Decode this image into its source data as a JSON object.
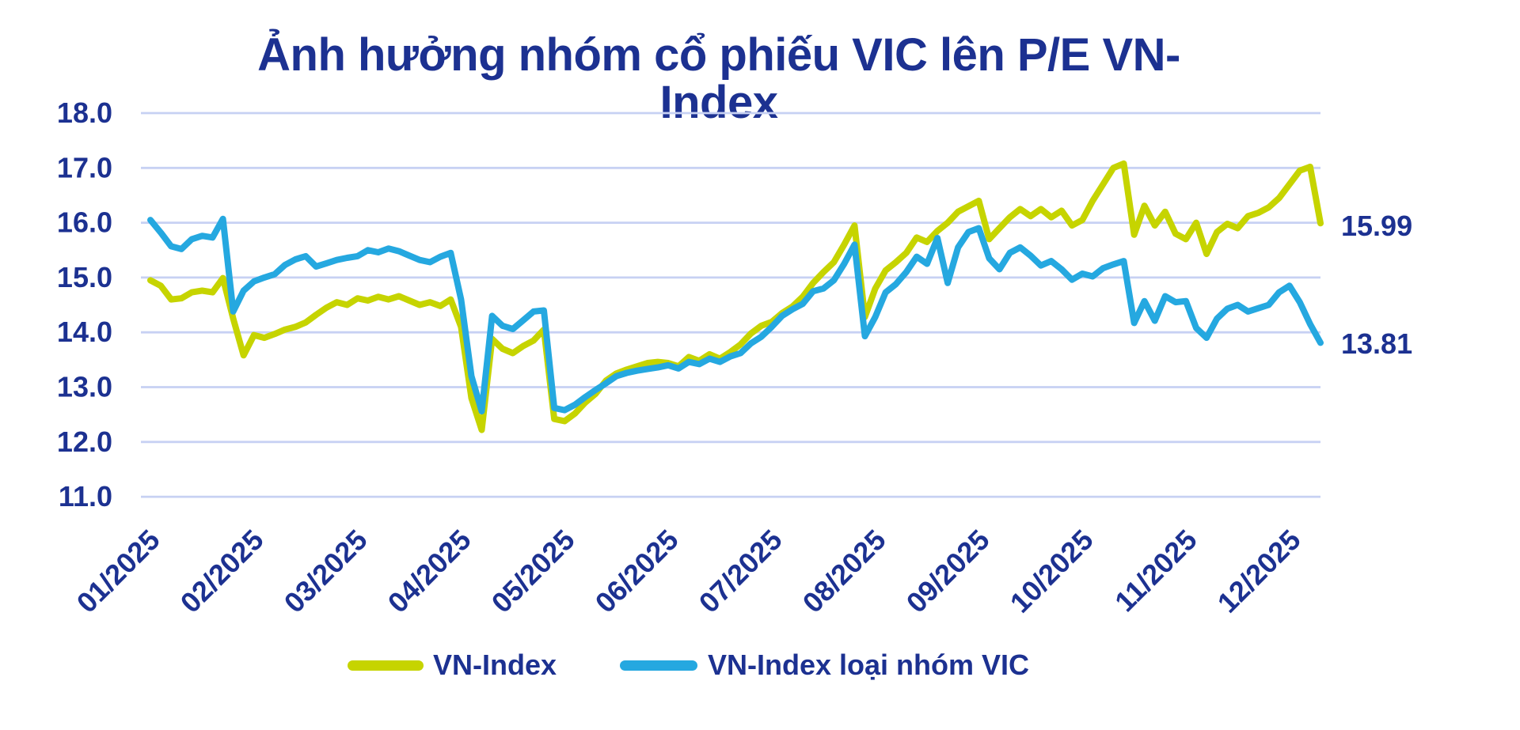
{
  "title": "Ảnh hưởng nhóm cổ phiếu VIC lên P/E VN-Index",
  "colors": {
    "title_text": "#1c3191",
    "axis_text": "#1c3191",
    "legend_text": "#1c3191",
    "end_label_text": "#1c3191",
    "gridline": "#c7d1f3",
    "vn_index_line": "#c6d400",
    "vn_index_ex_vic_line": "#25a8e0",
    "background": "#ffffff"
  },
  "chart_data": {
    "type": "line",
    "title": "Ảnh hưởng nhóm cổ phiếu VIC lên P/E VN-Index",
    "xlabel": "",
    "ylabel": "",
    "ylim": [
      11.0,
      18.0
    ],
    "grid": "horizontal-only",
    "legend_position": "bottom",
    "x_tick_labels": [
      "01/2025",
      "02/2025",
      "03/2025",
      "04/2025",
      "05/2025",
      "06/2025",
      "07/2025",
      "08/2025",
      "09/2025",
      "10/2025",
      "11/2025",
      "12/2025"
    ],
    "y_tick_labels": [
      "18.0",
      "17.0",
      "16.0",
      "15.0",
      "14.0",
      "13.0",
      "12.0",
      "11.0"
    ],
    "x_range_note": "daily P/E values from 01/2025 to mid 12/2025, sampled as 114 evenly spaced points",
    "series": [
      {
        "name": "VN-Index",
        "end_label": "15.99",
        "last_value": 15.99,
        "values": [
          14.95,
          14.85,
          14.6,
          14.62,
          14.73,
          14.76,
          14.73,
          14.99,
          14.25,
          13.58,
          13.95,
          13.9,
          13.97,
          14.05,
          14.1,
          14.18,
          14.32,
          14.45,
          14.55,
          14.5,
          14.62,
          14.58,
          14.65,
          14.6,
          14.66,
          14.58,
          14.5,
          14.55,
          14.48,
          14.6,
          14.1,
          12.8,
          12.22,
          13.88,
          13.7,
          13.62,
          13.75,
          13.85,
          14.05,
          12.42,
          12.38,
          12.52,
          12.72,
          12.88,
          13.12,
          13.25,
          13.32,
          13.38,
          13.44,
          13.46,
          13.44,
          13.38,
          13.55,
          13.48,
          13.6,
          13.52,
          13.64,
          13.78,
          13.98,
          14.12,
          14.19,
          14.35,
          14.47,
          14.65,
          14.9,
          15.1,
          15.28,
          15.6,
          15.95,
          14.28,
          14.8,
          15.13,
          15.28,
          15.45,
          15.73,
          15.65,
          15.85,
          16.0,
          16.2,
          16.3,
          16.4,
          15.7,
          15.9,
          16.1,
          16.25,
          16.12,
          16.25,
          16.1,
          16.22,
          15.95,
          16.05,
          16.4,
          16.7,
          17.0,
          17.08,
          15.78,
          16.31,
          15.95,
          16.2,
          15.8,
          15.7,
          16.0,
          15.43,
          15.83,
          15.98,
          15.9,
          16.12,
          16.18,
          16.28,
          16.45,
          16.7,
          16.95,
          17.02,
          15.99
        ]
      },
      {
        "name": "VN-Index loại nhóm VIC",
        "end_label": "13.81",
        "last_value": 13.81,
        "values": [
          16.05,
          15.82,
          15.57,
          15.52,
          15.7,
          15.76,
          15.73,
          16.07,
          14.38,
          14.76,
          14.93,
          15.0,
          15.06,
          15.23,
          15.33,
          15.39,
          15.2,
          15.26,
          15.32,
          15.36,
          15.39,
          15.5,
          15.46,
          15.53,
          15.48,
          15.4,
          15.32,
          15.28,
          15.38,
          15.45,
          14.6,
          13.2,
          12.56,
          14.3,
          14.12,
          14.06,
          14.22,
          14.38,
          14.4,
          12.62,
          12.58,
          12.68,
          12.82,
          12.95,
          13.07,
          13.2,
          13.26,
          13.3,
          13.33,
          13.36,
          13.4,
          13.34,
          13.46,
          13.42,
          13.52,
          13.46,
          13.56,
          13.62,
          13.8,
          13.92,
          14.1,
          14.3,
          14.42,
          14.52,
          14.75,
          14.8,
          14.95,
          15.25,
          15.6,
          13.93,
          14.28,
          14.73,
          14.88,
          15.1,
          15.38,
          15.25,
          15.72,
          14.9,
          15.55,
          15.83,
          15.9,
          15.35,
          15.15,
          15.45,
          15.55,
          15.4,
          15.22,
          15.3,
          15.15,
          14.96,
          15.07,
          15.02,
          15.17,
          15.24,
          15.3,
          14.17,
          14.57,
          14.21,
          14.66,
          14.55,
          14.57,
          14.08,
          13.9,
          14.25,
          14.43,
          14.5,
          14.38,
          14.44,
          14.5,
          14.73,
          14.85,
          14.55,
          14.15,
          13.81
        ]
      }
    ]
  },
  "legend": {
    "items": [
      {
        "label": "VN-Index"
      },
      {
        "label": "VN-Index loại nhóm VIC"
      }
    ]
  },
  "end_labels": {
    "vn_index": "15.99",
    "vn_index_ex_vic": "13.81"
  }
}
